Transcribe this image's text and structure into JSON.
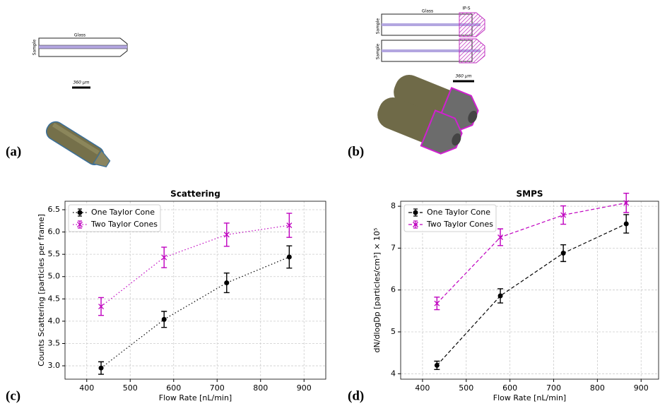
{
  "panels": [
    "(a)",
    "(b)",
    "(c)",
    "(d)"
  ],
  "diagram_a": {
    "material": "Glass",
    "sample": "Sample",
    "scale": "360 μm"
  },
  "diagram_b": {
    "material": "Glass",
    "coating": "IP-S",
    "sample_top": "Sample",
    "sample_bottom": "Sample",
    "scale": "360 μm"
  },
  "chart_data": [
    {
      "type": "line",
      "title": "Scattering",
      "x_label": "Flow Rate [nL/min]",
      "y_label": "Counts Scattering [particles per frame]",
      "xlim": [
        350,
        950
      ],
      "ylim": [
        2.7,
        6.69
      ],
      "xticks": [
        400,
        500,
        600,
        700,
        800,
        900
      ],
      "yticks": [
        {
          "value": 3,
          "label": "3.0"
        },
        3.5,
        {
          "value": 4,
          "label": "4.0"
        },
        4.5,
        {
          "value": 5,
          "label": "5.0"
        },
        5.5,
        {
          "value": 6,
          "label": "6.0"
        },
        6.5
      ],
      "grid": true,
      "legend": "upper left",
      "line_style": "dotted",
      "x": [
        433,
        578,
        722,
        866
      ],
      "series": [
        {
          "name": "One Taylor Cone",
          "color": "#000000",
          "marker": "circle",
          "values": [
            2.95,
            4.04,
            4.86,
            5.44
          ],
          "errors": [
            0.14,
            0.18,
            0.22,
            0.25
          ]
        },
        {
          "name": "Two Taylor Cones",
          "color": "#bf00bf",
          "marker": "x",
          "values": [
            4.33,
            5.43,
            5.94,
            6.15
          ],
          "errors": [
            0.2,
            0.23,
            0.26,
            0.27
          ]
        }
      ]
    },
    {
      "type": "line",
      "title": "SMPS",
      "x_label": "Flow Rate [nL/min]",
      "y_label": "dN/dlogDp [particles/cm³] × 10⁵",
      "xlim": [
        350,
        940
      ],
      "ylim": [
        3.87,
        8.12
      ],
      "xticks": [
        400,
        500,
        600,
        700,
        800,
        900
      ],
      "yticks": [
        4,
        5,
        6,
        7,
        8
      ],
      "grid": true,
      "legend": "upper left",
      "line_style": "dashed",
      "x": [
        433,
        578,
        722,
        866
      ],
      "series": [
        {
          "name": "One Taylor Cone",
          "color": "#000000",
          "marker": "circle",
          "values": [
            4.2,
            5.86,
            6.88,
            7.58
          ],
          "errors": [
            0.1,
            0.17,
            0.2,
            0.22
          ]
        },
        {
          "name": "Two Taylor Cones",
          "color": "#bf00bf",
          "marker": "x",
          "values": [
            5.68,
            7.26,
            7.79,
            8.08
          ],
          "errors": [
            0.15,
            0.2,
            0.22,
            0.23
          ]
        }
      ]
    }
  ]
}
